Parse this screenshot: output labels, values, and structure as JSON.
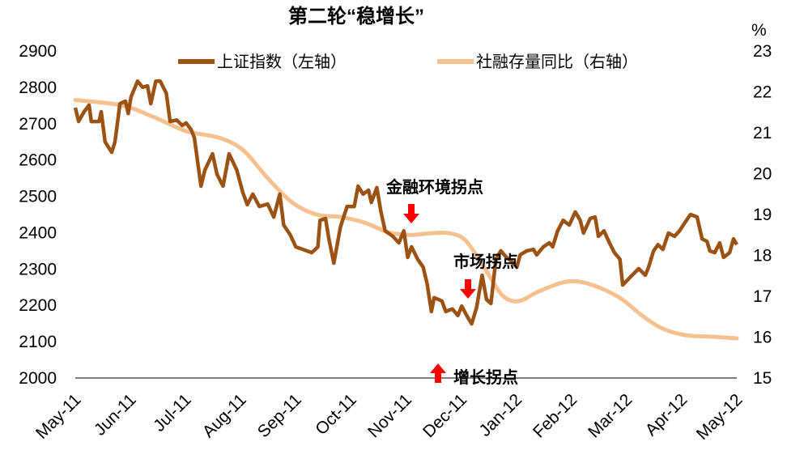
{
  "chart_data": {
    "type": "line",
    "title": "第二轮“稳增长”",
    "x_ticks": [
      "May-11",
      "Jun-11",
      "Jul-11",
      "Aug-11",
      "Sep-11",
      "Oct-11",
      "Nov-11",
      "Dec-11",
      "Jan-12",
      "Feb-12",
      "Mar-12",
      "Apr-12",
      "May-12"
    ],
    "x_unit": "months since May-11",
    "y_left": {
      "ticks": [
        "2000",
        "2100",
        "2200",
        "2300",
        "2400",
        "2500",
        "2600",
        "2700",
        "2800",
        "2900"
      ],
      "range": [
        2000,
        2900
      ]
    },
    "y_right": {
      "unit": "%",
      "ticks": [
        "15",
        "16",
        "17",
        "18",
        "19",
        "20",
        "21",
        "22",
        "23"
      ],
      "range": [
        15,
        23
      ]
    },
    "grid": false,
    "legend_position": "top",
    "series": [
      {
        "name": "上证指数（左轴）",
        "axis": "left",
        "color": "#9C5212",
        "x": [
          0,
          0.06,
          0.16,
          0.25,
          0.29,
          0.43,
          0.47,
          0.54,
          0.66,
          0.72,
          0.81,
          0.91,
          0.96,
          1.01,
          1.13,
          1.22,
          1.31,
          1.37,
          1.46,
          1.54,
          1.65,
          1.72,
          1.84,
          1.94,
          2.01,
          2.1,
          2.16,
          2.28,
          2.35,
          2.49,
          2.57,
          2.68,
          2.79,
          2.93,
          3.04,
          3.12,
          3.22,
          3.34,
          3.49,
          3.6,
          3.71,
          3.78,
          3.9,
          4.0,
          4.29,
          4.4,
          4.44,
          4.54,
          4.6,
          4.69,
          4.81,
          4.93,
          5.06,
          5.13,
          5.22,
          5.32,
          5.37,
          5.47,
          5.54,
          5.62,
          5.76,
          5.87,
          5.96,
          6.03,
          6.1,
          6.21,
          6.31,
          6.38,
          6.46,
          6.51,
          6.65,
          6.72,
          6.84,
          6.94,
          7.01,
          7.1,
          7.19,
          7.28,
          7.38,
          7.46,
          7.54,
          7.63,
          7.72,
          7.82,
          7.9,
          8.01,
          8.07,
          8.19,
          8.31,
          8.37,
          8.49,
          8.6,
          8.66,
          8.75,
          8.85,
          8.96,
          9.07,
          9.16,
          9.22,
          9.34,
          9.43,
          9.49,
          9.59,
          9.69,
          9.78,
          9.88,
          9.93,
          10.07,
          10.22,
          10.34,
          10.4,
          10.49,
          10.57,
          10.66,
          10.76,
          10.87,
          10.96,
          11.06,
          11.16,
          11.28,
          11.37,
          11.46,
          11.51,
          11.6,
          11.69,
          11.76,
          11.87,
          11.94,
          12.0
        ],
        "values": [
          2744,
          2706,
          2733,
          2751,
          2706,
          2706,
          2733,
          2650,
          2621,
          2650,
          2755,
          2762,
          2728,
          2773,
          2817,
          2800,
          2804,
          2755,
          2817,
          2817,
          2784,
          2706,
          2710,
          2695,
          2702,
          2684,
          2661,
          2528,
          2572,
          2617,
          2561,
          2528,
          2617,
          2572,
          2510,
          2477,
          2506,
          2472,
          2479,
          2443,
          2506,
          2421,
          2394,
          2361,
          2345,
          2361,
          2434,
          2439,
          2383,
          2316,
          2416,
          2472,
          2472,
          2528,
          2506,
          2517,
          2483,
          2524,
          2461,
          2405,
          2390,
          2372,
          2405,
          2332,
          2361,
          2327,
          2305,
          2261,
          2183,
          2221,
          2212,
          2183,
          2190,
          2172,
          2198,
          2172,
          2149,
          2194,
          2283,
          2216,
          2205,
          2327,
          2350,
          2332,
          2323,
          2305,
          2339,
          2350,
          2354,
          2339,
          2361,
          2372,
          2361,
          2405,
          2434,
          2421,
          2457,
          2434,
          2399,
          2439,
          2443,
          2390,
          2405,
          2372,
          2345,
          2327,
          2256,
          2278,
          2301,
          2283,
          2305,
          2350,
          2367,
          2354,
          2399,
          2390,
          2405,
          2428,
          2450,
          2443,
          2383,
          2376,
          2350,
          2345,
          2372,
          2332,
          2345,
          2383,
          2367
        ]
      },
      {
        "name": "社融存量同比（右轴）",
        "axis": "right",
        "color": "#F6C08F",
        "x": [
          0,
          0.84,
          1.43,
          2.01,
          2.6,
          3.04,
          3.49,
          3.93,
          4.37,
          4.81,
          5.25,
          5.69,
          6.06,
          6.43,
          6.79,
          7.09,
          7.46,
          7.75,
          8.04,
          8.41,
          8.93,
          9.37,
          9.88,
          10.25,
          10.62,
          11.06,
          11.57,
          12
        ],
        "values": [
          21.8,
          21.67,
          21.38,
          21.04,
          20.88,
          20.58,
          19.89,
          19.3,
          19.0,
          18.94,
          18.8,
          18.56,
          18.5,
          18.54,
          18.54,
          18.35,
          17.61,
          17.02,
          16.88,
          17.12,
          17.36,
          17.28,
          16.96,
          16.56,
          16.23,
          16.05,
          16.01,
          15.97
        ]
      }
    ],
    "annotations": [
      {
        "text": "金融环境拐点",
        "arrow": "down",
        "x": 6.2,
        "color": "#FF0000"
      },
      {
        "text": "市场拐点",
        "arrow": "down",
        "x": 7.13,
        "color": "#FF0000"
      },
      {
        "text": "增长拐点",
        "arrow": "up",
        "x": 6.58,
        "color": "#FF0000"
      }
    ]
  }
}
